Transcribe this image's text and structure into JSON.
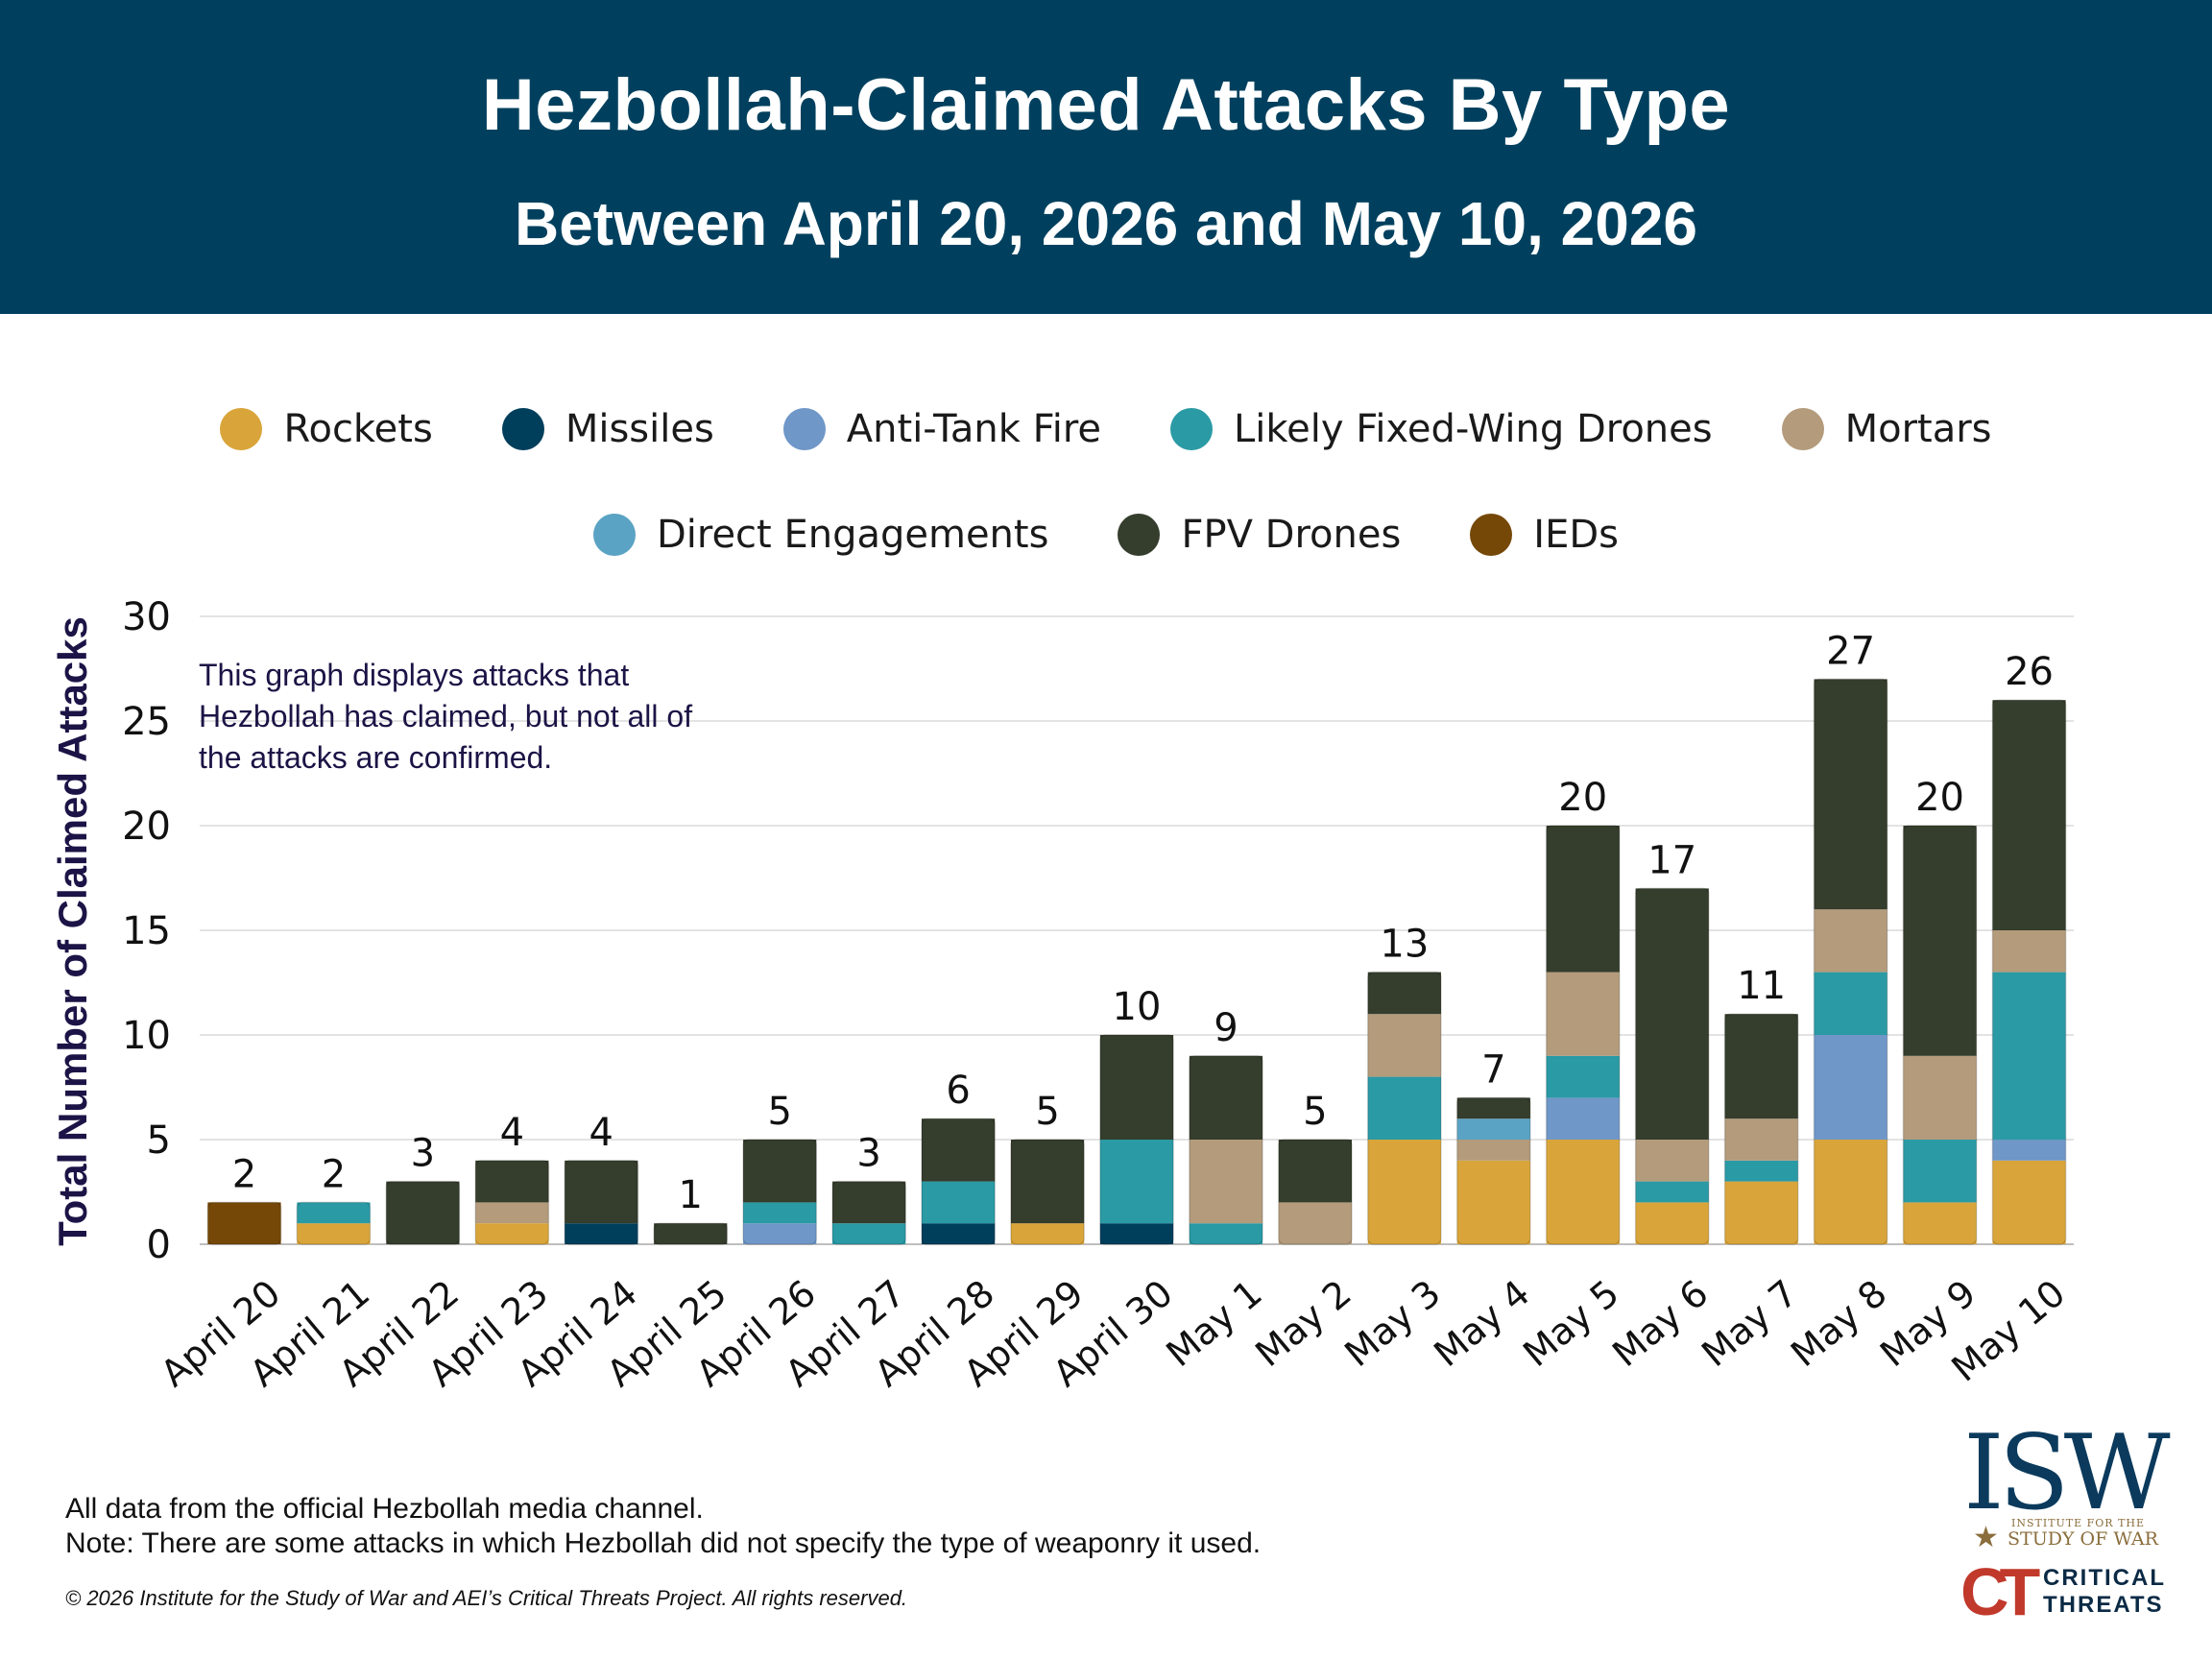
{
  "header": {
    "title": "Hezbollah-Claimed Attacks By Type",
    "subtitle": "Between April 20, 2026 and May 10, 2026",
    "background_color": "#00405e"
  },
  "legend": [
    {
      "name": "Rockets",
      "color": "#d9a53a"
    },
    {
      "name": "Missiles",
      "color": "#003f5c"
    },
    {
      "name": "Anti-Tank Fire",
      "color": "#6f97c8"
    },
    {
      "name": "Likely Fixed-Wing Drones",
      "color": "#2a9aa5"
    },
    {
      "name": "Mortars",
      "color": "#b39b7b"
    },
    {
      "name": "Direct Engagements",
      "color": "#5aa3c4"
    },
    {
      "name": "FPV Drones",
      "color": "#353d2c"
    },
    {
      "name": "IEDs",
      "color": "#754808"
    }
  ],
  "annotation": "This graph displays attacks that Hezbollah has claimed, but not all of the attacks are confirmed.",
  "footer": {
    "source": "All data from the official Hezbollah media channel.",
    "note": "Note: There are some attacks in which Hezbollah did not specify the type of weaponry it used.",
    "copyright": "© 2026 Institute for the Study of War and AEI’s Critical Threats Project. All rights reserved."
  },
  "logos": {
    "isw_text": "ISW",
    "isw_line1": "INSTITUTE FOR THE",
    "isw_line2": "STUDY OF WAR",
    "ct_mark": "CT",
    "ct_line1": "CRITICAL",
    "ct_line2": "THREATS"
  },
  "chart_data": {
    "type": "bar",
    "stacked": true,
    "ylabel": "Total Number of Claimed Attacks",
    "xlabel": "",
    "ylim": [
      0,
      30
    ],
    "yticks": [
      0,
      5,
      10,
      15,
      20,
      25,
      30
    ],
    "grid": true,
    "legend_position": "top",
    "categories": [
      "April 20",
      "April 21",
      "April 22",
      "April 23",
      "April 24",
      "April 25",
      "April 26",
      "April 27",
      "April 28",
      "April 29",
      "April 30",
      "May 1",
      "May 2",
      "May 3",
      "May 4",
      "May 5",
      "May 6",
      "May 7",
      "May 8",
      "May 9",
      "May 10"
    ],
    "totals": [
      2,
      2,
      3,
      4,
      4,
      1,
      5,
      3,
      6,
      5,
      10,
      9,
      5,
      13,
      7,
      20,
      17,
      11,
      27,
      20,
      26
    ],
    "series": [
      {
        "name": "Rockets",
        "color": "#d9a53a",
        "values": [
          0,
          1,
          0,
          1,
          0,
          0,
          0,
          0,
          0,
          1,
          0,
          0,
          0,
          5,
          4,
          5,
          2,
          3,
          5,
          2,
          4
        ]
      },
      {
        "name": "Missiles",
        "color": "#003f5c",
        "values": [
          0,
          0,
          0,
          0,
          1,
          0,
          0,
          0,
          1,
          0,
          1,
          0,
          0,
          0,
          0,
          0,
          0,
          0,
          0,
          0,
          0
        ]
      },
      {
        "name": "Anti-Tank Fire",
        "color": "#6f97c8",
        "values": [
          0,
          0,
          0,
          0,
          0,
          0,
          1,
          0,
          0,
          0,
          0,
          0,
          0,
          0,
          0,
          2,
          0,
          0,
          5,
          0,
          1
        ]
      },
      {
        "name": "Likely Fixed-Wing Drones",
        "color": "#2a9aa5",
        "values": [
          0,
          1,
          0,
          0,
          0,
          0,
          1,
          1,
          2,
          0,
          4,
          1,
          0,
          3,
          0,
          2,
          1,
          1,
          3,
          3,
          8
        ]
      },
      {
        "name": "Mortars",
        "color": "#b39b7b",
        "values": [
          0,
          0,
          0,
          1,
          0,
          0,
          0,
          0,
          0,
          0,
          0,
          4,
          2,
          3,
          1,
          4,
          2,
          2,
          3,
          4,
          2
        ]
      },
      {
        "name": "Direct Engagements",
        "color": "#5aa3c4",
        "values": [
          0,
          0,
          0,
          0,
          0,
          0,
          0,
          0,
          0,
          0,
          0,
          0,
          0,
          0,
          1,
          0,
          0,
          0,
          0,
          0,
          0
        ]
      },
      {
        "name": "FPV Drones",
        "color": "#353d2c",
        "values": [
          0,
          0,
          3,
          2,
          3,
          1,
          3,
          2,
          3,
          4,
          5,
          4,
          3,
          2,
          1,
          7,
          12,
          5,
          11,
          11,
          11
        ]
      },
      {
        "name": "IEDs",
        "color": "#754808",
        "values": [
          2,
          0,
          0,
          0,
          0,
          0,
          0,
          0,
          0,
          0,
          0,
          0,
          0,
          0,
          0,
          0,
          0,
          0,
          0,
          0,
          0
        ]
      }
    ]
  }
}
